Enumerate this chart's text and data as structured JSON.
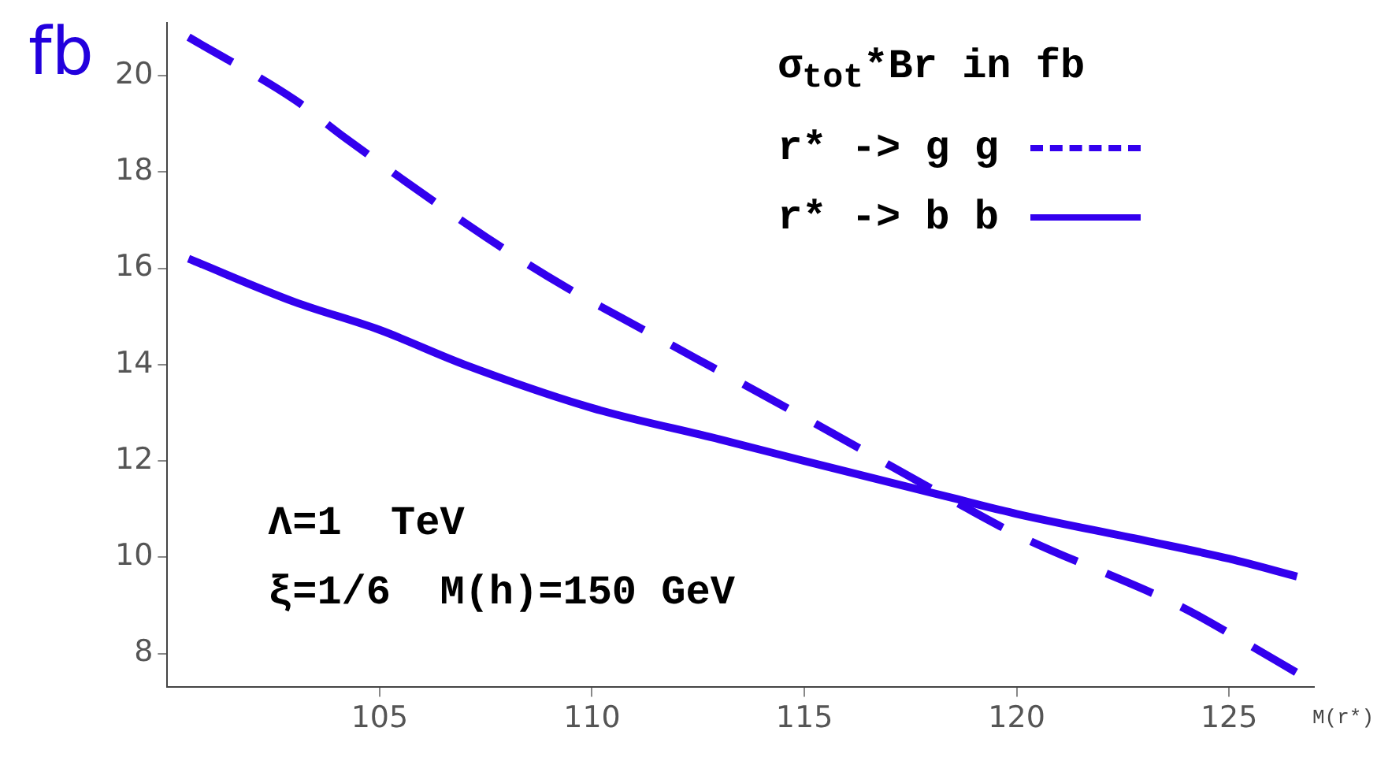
{
  "chart_data": {
    "type": "line",
    "ylabel": "fb",
    "xlabel": "M(r*)",
    "legend_title": "σ$_{tot}$*Br in fb",
    "legend": "top right",
    "grid": false,
    "marker": "none",
    "xlim": [
      100,
      127
    ],
    "xticks": [
      105,
      110,
      115,
      120,
      125
    ],
    "ylim": [
      7.3,
      21.1
    ],
    "yticks": [
      8,
      10,
      12,
      14,
      16,
      18,
      20
    ],
    "annotations": [
      "Λ=1  TeV",
      "ξ=1/6  M(h)=150 GeV"
    ],
    "series": [
      {
        "name": "r* -> g g",
        "color": "#3300ee",
        "line_style": "dashed",
        "x": [
          100.5,
          103,
          104.2,
          107.5,
          109.4,
          110.7,
          115,
          118.7,
          120,
          123.9,
          125.2,
          126.6
        ],
        "values": [
          20.8,
          19.5,
          18.7,
          16.65,
          15.6,
          14.97,
          12.9,
          11.08,
          10.47,
          8.96,
          8.32,
          7.6
        ]
      },
      {
        "name": "r* -> b b",
        "color": "#3300ee",
        "line_style": "solid",
        "x": [
          100.5,
          103,
          105,
          107,
          110,
          113,
          115,
          118.4,
          120,
          123,
          125,
          126.6
        ],
        "values": [
          16.2,
          15.3,
          14.72,
          14.0,
          13.1,
          12.45,
          12.0,
          11.25,
          10.9,
          10.35,
          9.97,
          9.6
        ]
      }
    ]
  }
}
